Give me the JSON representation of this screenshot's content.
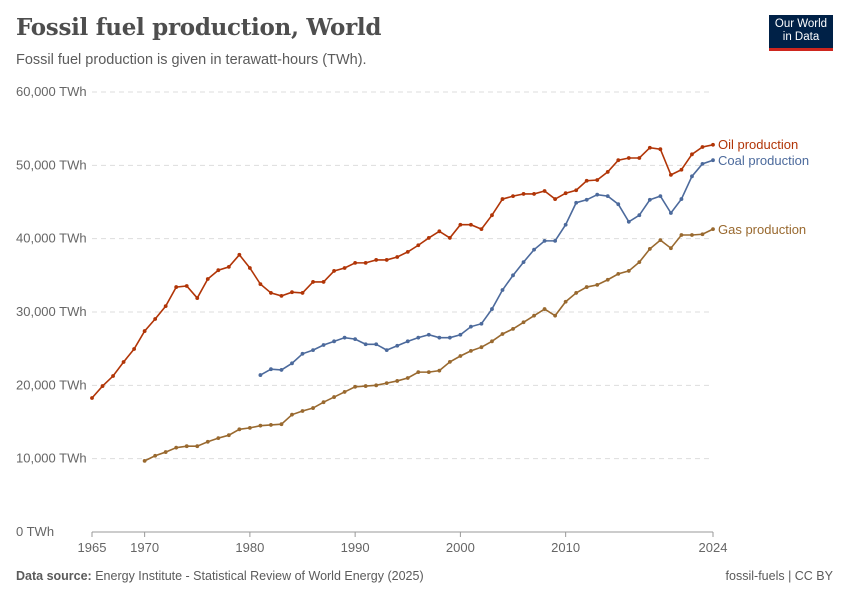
{
  "header": {
    "title": "Fossil fuel production, World",
    "subtitle": "Fossil fuel production is given in terawatt-hours (TWh).",
    "logo_text": "Our World in Data"
  },
  "footer": {
    "source_label": "Data source:",
    "source": "Energy Institute - Statistical Review of World Energy (2025)",
    "right": "fossil-fuels | CC BY"
  },
  "chart_data": {
    "type": "line",
    "title": "Fossil fuel production, World",
    "ylim": [
      0,
      60000
    ],
    "xlim": [
      1965,
      2024
    ],
    "y_ticks": [
      0,
      10000,
      20000,
      30000,
      40000,
      50000,
      60000
    ],
    "y_tick_labels": [
      "0 TWh",
      "10,000 TWh",
      "20,000 TWh",
      "30,000 TWh",
      "40,000 TWh",
      "50,000 TWh",
      "60,000 TWh"
    ],
    "x_ticks": [
      1965,
      1970,
      1980,
      1990,
      2000,
      2010,
      2024
    ],
    "x_tick_labels": [
      "1965",
      "1970",
      "1980",
      "1990",
      "2000",
      "2010",
      "2024"
    ],
    "grid": "horizontal dashed",
    "legend": "inline-right",
    "series": [
      {
        "name": "Oil production",
        "color": "#b13507",
        "start": 1965,
        "values": [
          18270,
          19900,
          21270,
          23180,
          24950,
          27400,
          29050,
          30800,
          33400,
          33550,
          31900,
          34500,
          35700,
          36150,
          37800,
          36000,
          33800,
          32600,
          32200,
          32700,
          32600,
          34100,
          34100,
          35600,
          36000,
          36700,
          36700,
          37100,
          37100,
          37500,
          38200,
          39100,
          40100,
          41000,
          40100,
          41900,
          41900,
          41300,
          43200,
          45400,
          45800,
          46100,
          46100,
          46500,
          45400,
          46200,
          46600,
          47900,
          48000,
          49100,
          50700,
          51000,
          51000,
          52400,
          52200,
          48700,
          49400,
          51500,
          52500,
          52800
        ]
      },
      {
        "name": "Coal production",
        "color": "#4c6a9c",
        "start": 1981,
        "values": [
          21400,
          22200,
          22100,
          23000,
          24300,
          24800,
          25500,
          26000,
          26500,
          26300,
          25600,
          25600,
          24800,
          25400,
          26000,
          26500,
          26900,
          26500,
          26500,
          26900,
          28000,
          28400,
          30400,
          33000,
          35000,
          36800,
          38500,
          39700,
          39700,
          41900,
          44900,
          45300,
          46000,
          45800,
          44700,
          42300,
          43200,
          45300,
          45800,
          43500,
          45400,
          48500,
          50200,
          50700
        ]
      },
      {
        "name": "Gas production",
        "color": "#99692f",
        "start": 1970,
        "values": [
          9700,
          10400,
          10900,
          11500,
          11700,
          11700,
          12300,
          12800,
          13200,
          14000,
          14200,
          14500,
          14600,
          14700,
          16000,
          16500,
          16900,
          17700,
          18400,
          19100,
          19800,
          19900,
          20000,
          20300,
          20600,
          21000,
          21800,
          21800,
          22000,
          23200,
          24000,
          24700,
          25200,
          26000,
          27000,
          27700,
          28600,
          29500,
          30400,
          29500,
          31400,
          32600,
          33400,
          33700,
          34400,
          35200,
          35600,
          36800,
          38600,
          39800,
          38700,
          40500,
          40500,
          40600,
          41300
        ]
      }
    ]
  }
}
